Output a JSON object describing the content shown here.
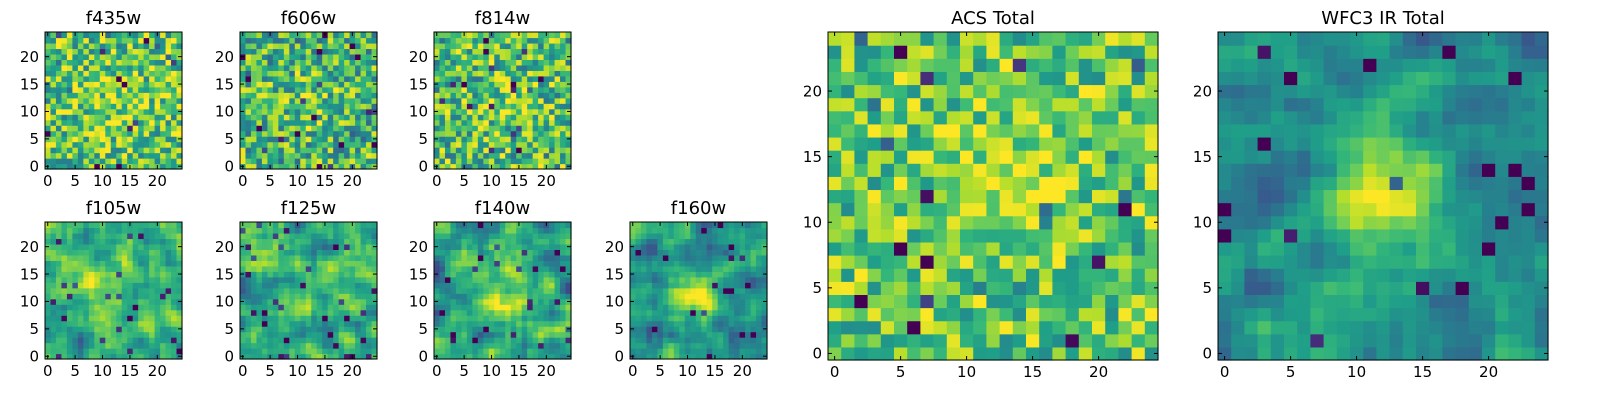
{
  "chart_data": [
    {
      "id": "f435w",
      "title": "f435w",
      "type": "heatmap",
      "grid": "25x25",
      "xticks": [
        "0",
        "5",
        "10",
        "15",
        "20"
      ],
      "yticks": [
        "0",
        "5",
        "10",
        "15",
        "20"
      ],
      "xlim": [
        -0.5,
        24.5
      ],
      "ylim": [
        -0.5,
        24.5
      ],
      "colormap": "viridis",
      "intensity": {
        "base": 0.72,
        "noise": 0.3,
        "peak": 0.08,
        "center": [
          12,
          12
        ],
        "sigma": 4,
        "smooth": 0
      }
    },
    {
      "id": "f606w",
      "title": "f606w",
      "type": "heatmap",
      "grid": "25x25",
      "xticks": [
        "0",
        "5",
        "10",
        "15",
        "20"
      ],
      "yticks": [
        "0",
        "5",
        "10",
        "15",
        "20"
      ],
      "xlim": [
        -0.5,
        24.5
      ],
      "ylim": [
        -0.5,
        24.5
      ],
      "colormap": "viridis",
      "intensity": {
        "base": 0.66,
        "noise": 0.32,
        "peak": 0.1,
        "center": [
          13,
          11
        ],
        "sigma": 4,
        "smooth": 0
      }
    },
    {
      "id": "f814w",
      "title": "f814w",
      "type": "heatmap",
      "grid": "25x25",
      "xticks": [
        "0",
        "5",
        "10",
        "15",
        "20"
      ],
      "yticks": [
        "0",
        "5",
        "10",
        "15",
        "20"
      ],
      "xlim": [
        -0.5,
        24.5
      ],
      "ylim": [
        -0.5,
        24.5
      ],
      "colormap": "viridis",
      "intensity": {
        "base": 0.68,
        "noise": 0.32,
        "peak": 0.1,
        "center": [
          13,
          12
        ],
        "sigma": 4,
        "smooth": 0
      }
    },
    {
      "id": "f105w",
      "title": "f105w",
      "type": "heatmap",
      "grid": "25x25",
      "xticks": [
        "0",
        "5",
        "10",
        "15",
        "20"
      ],
      "yticks": [
        "0",
        "5",
        "10",
        "15",
        "20"
      ],
      "xlim": [
        -0.5,
        24.5
      ],
      "ylim": [
        -0.5,
        24.5
      ],
      "colormap": "viridis",
      "intensity": {
        "base": 0.62,
        "noise": 0.3,
        "peak": 0.22,
        "center": [
          10,
          12
        ],
        "sigma": 4,
        "smooth": 1
      }
    },
    {
      "id": "f125w",
      "title": "f125w",
      "type": "heatmap",
      "grid": "25x25",
      "xticks": [
        "0",
        "5",
        "10",
        "15",
        "20"
      ],
      "yticks": [
        "0",
        "5",
        "10",
        "15",
        "20"
      ],
      "xlim": [
        -0.5,
        24.5
      ],
      "ylim": [
        -0.5,
        24.5
      ],
      "colormap": "viridis",
      "intensity": {
        "base": 0.62,
        "noise": 0.32,
        "peak": 0.18,
        "center": [
          12,
          12
        ],
        "sigma": 4,
        "smooth": 1
      }
    },
    {
      "id": "f140w",
      "title": "f140w",
      "type": "heatmap",
      "grid": "25x25",
      "xticks": [
        "0",
        "5",
        "10",
        "15",
        "20"
      ],
      "yticks": [
        "0",
        "5",
        "10",
        "15",
        "20"
      ],
      "xlim": [
        -0.5,
        24.5
      ],
      "ylim": [
        -0.5,
        24.5
      ],
      "colormap": "viridis",
      "intensity": {
        "base": 0.58,
        "noise": 0.32,
        "peak": 0.22,
        "center": [
          13,
          11
        ],
        "sigma": 4,
        "smooth": 1
      }
    },
    {
      "id": "f160w",
      "title": "f160w",
      "type": "heatmap",
      "grid": "25x25",
      "xticks": [
        "0",
        "5",
        "10",
        "15",
        "20"
      ],
      "yticks": [
        "0",
        "5",
        "10",
        "15",
        "20"
      ],
      "xlim": [
        -0.5,
        24.5
      ],
      "ylim": [
        -0.5,
        24.5
      ],
      "colormap": "viridis",
      "intensity": {
        "base": 0.5,
        "noise": 0.28,
        "peak": 0.42,
        "center": [
          12,
          11
        ],
        "sigma": 3,
        "smooth": 1
      }
    },
    {
      "id": "acs_total",
      "title": "ACS Total",
      "type": "heatmap",
      "grid": "25x25",
      "xticks": [
        "0",
        "5",
        "10",
        "15",
        "20"
      ],
      "yticks": [
        "0",
        "5",
        "10",
        "15",
        "20"
      ],
      "xlim": [
        -0.5,
        24.5
      ],
      "ylim": [
        -0.5,
        24.5
      ],
      "colormap": "viridis",
      "intensity": {
        "base": 0.74,
        "noise": 0.26,
        "peak": 0.14,
        "center": [
          13,
          12
        ],
        "sigma": 4,
        "smooth": 0
      }
    },
    {
      "id": "wfc3_ir_total",
      "title": "WFC3 IR Total",
      "type": "heatmap",
      "grid": "25x25",
      "xticks": [
        "0",
        "5",
        "10",
        "15",
        "20"
      ],
      "yticks": [
        "0",
        "5",
        "10",
        "15",
        "20"
      ],
      "xlim": [
        -0.5,
        24.5
      ],
      "ylim": [
        -0.5,
        24.5
      ],
      "colormap": "viridis",
      "intensity": {
        "base": 0.5,
        "noise": 0.24,
        "peak": 0.45,
        "center": [
          12,
          12
        ],
        "sigma": 3,
        "smooth": 1
      }
    }
  ]
}
